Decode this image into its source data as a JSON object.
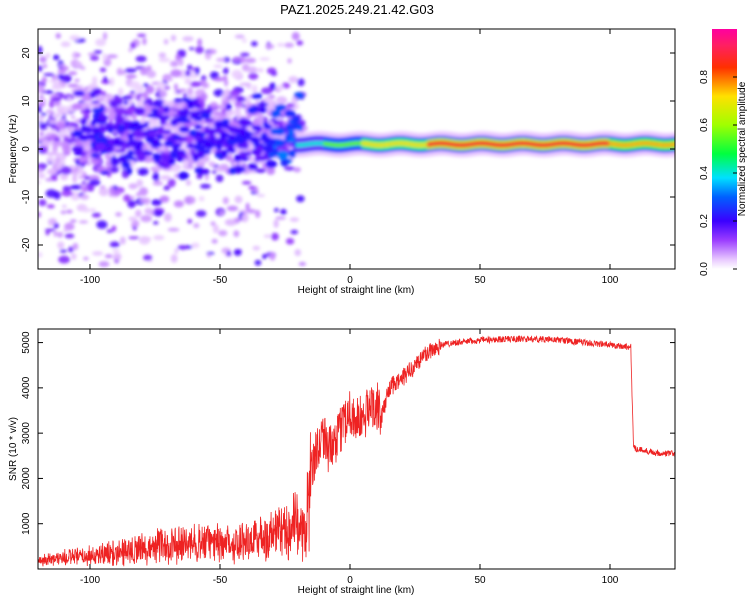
{
  "title": "PAZ1.2025.249.21.42.G03",
  "chart_data": [
    {
      "type": "heatmap",
      "xlabel": "Height of straight line (km)",
      "ylabel": "Frequency (Hz)",
      "xlim": [
        -120,
        125
      ],
      "ylim": [
        -25,
        25
      ],
      "xticks": [
        -100,
        -50,
        0,
        50,
        100
      ],
      "yticks": [
        -20,
        -10,
        0,
        10,
        20
      ],
      "grid": false,
      "colorbar": {
        "label": "Normalized spectral amplitude",
        "ticks": [
          "0.0",
          "0.2",
          "0.4",
          "0.6",
          "0.8"
        ],
        "range": [
          0,
          1
        ],
        "colormap": "rainbow (magenta-blue-cyan-green-yellow-red-pink)"
      },
      "description_series": [
        {
          "x_range": [
            -120,
            -20
          ],
          "freq_spread_hz": [
            -25,
            25
          ],
          "amplitude": "low (0.0-0.3), scattered, concentrated 0-10 Hz"
        },
        {
          "x_range": [
            -20,
            125
          ],
          "freq_center_hz": 1,
          "freq_width_hz": 2,
          "amplitude": "high (0.6-1.0), narrow line"
        }
      ]
    },
    {
      "type": "line",
      "xlabel": "Height of straight line (km)",
      "ylabel": "SNR (10 * v/v)",
      "xlim": [
        -120,
        125
      ],
      "ylim": [
        0,
        5300
      ],
      "xticks": [
        -100,
        -50,
        0,
        50,
        100
      ],
      "yticks": [
        1000,
        2000,
        3000,
        4000,
        5000
      ],
      "grid": false,
      "series": [
        {
          "color": "#ee2222",
          "x": [
            -120,
            -110,
            -100,
            -90,
            -80,
            -70,
            -60,
            -50,
            -40,
            -30,
            -25,
            -20,
            -17,
            -15,
            -12,
            -10,
            -8,
            -5,
            -3,
            0,
            2,
            5,
            8,
            10,
            12,
            15,
            18,
            20,
            25,
            30,
            35,
            40,
            50,
            60,
            70,
            80,
            90,
            100,
            108,
            109,
            110,
            115,
            120,
            125
          ],
          "y": [
            180,
            250,
            280,
            380,
            450,
            520,
            560,
            580,
            620,
            760,
            850,
            1000,
            800,
            2200,
            2800,
            3000,
            2600,
            2800,
            3200,
            3500,
            3300,
            3300,
            3600,
            3700,
            3300,
            4000,
            4100,
            4200,
            4500,
            4800,
            4950,
            5000,
            5050,
            5080,
            5080,
            5060,
            5000,
            4950,
            4900,
            2750,
            2650,
            2600,
            2550,
            2550
          ],
          "noise_amplitude": "high for x<35, moderate after"
        }
      ]
    }
  ]
}
